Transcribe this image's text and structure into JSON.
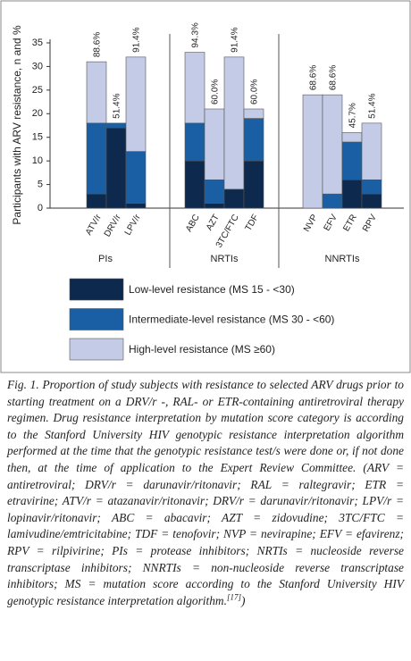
{
  "chart_data": {
    "type": "bar",
    "ylabel": "Participants with ARV resistance, n and %",
    "categories": [
      "ATV/r",
      "DRV/r",
      "LPV/r",
      "ABC",
      "AZT",
      "3TC/FTC",
      "TDF",
      "NVP",
      "EFV",
      "ETR",
      "RPV"
    ],
    "groups": [
      "PIs",
      "NRTIs",
      "NNRTIs"
    ],
    "percent_labels": [
      "88.6%",
      "51.4%",
      "91.4%",
      "94.3%",
      "60.0%",
      "91.4%",
      "60.0%",
      "68.6%",
      "68.6%",
      "45.7%",
      "51.4%"
    ],
    "series": [
      {
        "name": "Low-level resistance (MS 15 - <30)",
        "color": "#0d2a4e",
        "values": [
          3,
          17,
          1,
          10,
          1,
          4,
          10,
          0,
          0,
          6,
          3
        ]
      },
      {
        "name": "Intermediate-level resistance (MS 30 - <60)",
        "color": "#1a5fa3",
        "values": [
          15,
          1,
          11,
          8,
          5,
          0,
          9,
          0,
          3,
          8,
          3
        ]
      },
      {
        "name": "High-level resistance (MS ≥60)",
        "color": "#c3cbe6",
        "values": [
          13,
          0,
          20,
          15,
          15,
          28,
          2,
          24,
          21,
          2,
          12
        ]
      }
    ],
    "ylim": [
      0,
      35
    ],
    "yticks": [
      0,
      5,
      10,
      15,
      20,
      25,
      30,
      35
    ],
    "grid": false,
    "stacked": true
  },
  "caption": {
    "text": "Fig. 1. Proportion of study subjects with resistance to selected ARV drugs prior to starting treatment on a DRV/r -, RAL- or ETR-containing antiretroviral therapy regimen. Drug resistance interpretation by mutation score category is according to the Stanford University HIV genotypic resistance interpretation algorithm performed at the time that the genotypic resistance test/s were done or, if not done then, at the time of application to the Expert Review Committee. (ARV = antiretroviral; DRV/r = darunavir/ritonavir; RAL = raltegravir; ETR = etravirine; ATV/r = atazanavir/ritonavir; DRV/r = darunavir/ritonavir; LPV/r = lopinavir/ritonavir; ABC = abacavir; AZT = zidovudine; 3TC/FTC = lamivudine/emtricitabine; TDF = tenofovir; NVP = nevirapine; EFV = efavirenz; RPV = rilpivirine; PIs = protease inhibitors; NRTIs = nucleoside reverse transcriptase inhibitors; NNRTIs = non-nucleoside reverse transcriptase inhibitors; MS = mutation score according to the Stanford University HIV genotypic resistance interpretation algorithm.",
    "ref": "[17]",
    "end": ")"
  }
}
